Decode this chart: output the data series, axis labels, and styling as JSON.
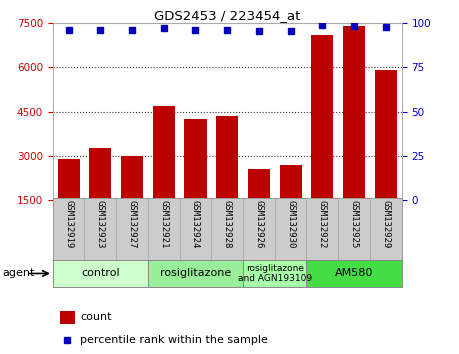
{
  "title": "GDS2453 / 223454_at",
  "samples": [
    "GSM132919",
    "GSM132923",
    "GSM132927",
    "GSM132921",
    "GSM132924",
    "GSM132928",
    "GSM132926",
    "GSM132930",
    "GSM132922",
    "GSM132925",
    "GSM132929"
  ],
  "counts": [
    2900,
    3250,
    3000,
    4700,
    4250,
    4350,
    2550,
    2700,
    7100,
    7400,
    5900
  ],
  "percentiles": [
    96,
    96,
    96,
    97,
    96,
    96,
    95.5,
    95.5,
    99,
    98.5,
    98
  ],
  "ylim_left": [
    1500,
    7500
  ],
  "ylim_right": [
    0,
    100
  ],
  "yticks_left": [
    1500,
    3000,
    4500,
    6000,
    7500
  ],
  "yticks_right": [
    0,
    25,
    50,
    75,
    100
  ],
  "bar_color": "#bb0000",
  "dot_color": "#0000bb",
  "grid_color": "#000000",
  "groups": [
    {
      "label": "control",
      "start": 0,
      "end": 3,
      "color": "#ccffcc"
    },
    {
      "label": "rosiglitazone",
      "start": 3,
      "end": 6,
      "color": "#99ee99"
    },
    {
      "label": "rosiglitazone\nand AGN193109",
      "start": 6,
      "end": 8,
      "color": "#aaffaa"
    },
    {
      "label": "AM580",
      "start": 8,
      "end": 11,
      "color": "#44dd44"
    }
  ],
  "agent_label": "agent",
  "legend_count_label": "count",
  "legend_pct_label": "percentile rank within the sample",
  "background_color": "#ffffff",
  "tick_label_color_left": "#cc0000",
  "tick_label_color_right": "#0000cc",
  "label_bg_color": "#cccccc"
}
